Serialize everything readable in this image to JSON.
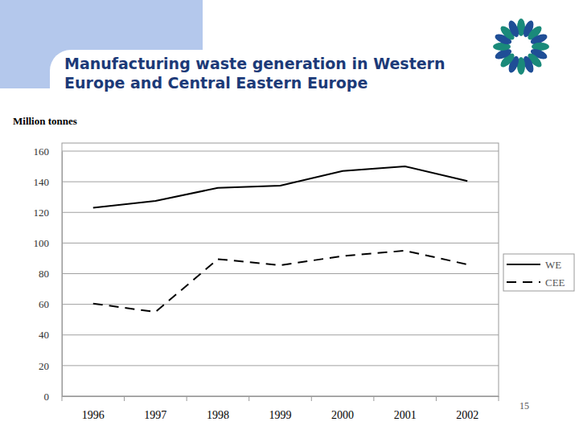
{
  "chart_data": {
    "type": "line",
    "title": "Manufacturing waste generation in Western Europe and Central Eastern Europe",
    "y_label": "Million tonnes",
    "categories": [
      "1996",
      "1997",
      "1998",
      "1999",
      "2000",
      "2001",
      "2002"
    ],
    "series": [
      {
        "name": "WE",
        "color": "#000000",
        "line_style": "solid",
        "values": [
          123,
          127.5,
          136,
          137.5,
          147,
          150,
          140.5
        ]
      },
      {
        "name": "CEE",
        "color": "#000000",
        "line_style": "dashed",
        "values": [
          60.5,
          55,
          89.5,
          85.5,
          91.5,
          95,
          86
        ]
      }
    ],
    "ylim": [
      0,
      160
    ],
    "yticks": [
      0,
      20,
      40,
      60,
      80,
      100,
      120,
      140,
      160
    ],
    "grid": true,
    "legend": "right"
  },
  "page_number": "15"
}
